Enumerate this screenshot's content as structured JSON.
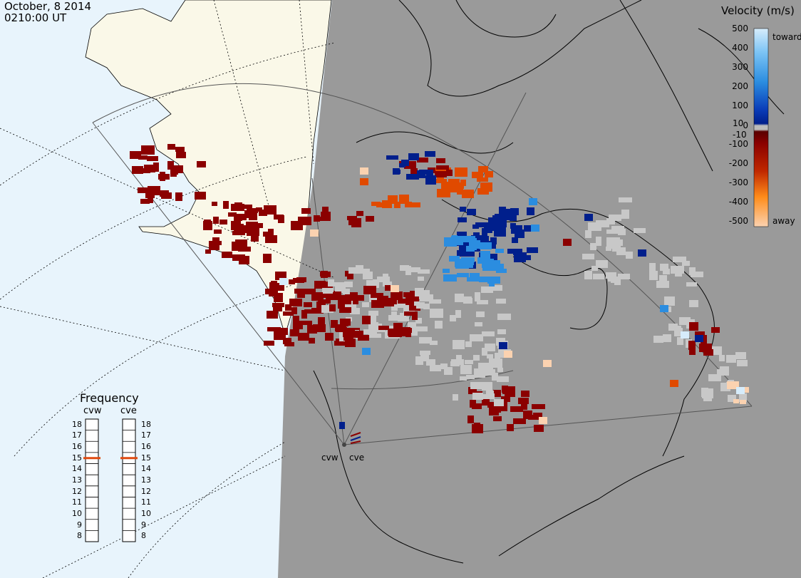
{
  "header": {
    "date": "October, 8 2014",
    "time": "0210:00 UT"
  },
  "colorbar": {
    "title": "Velocity (m/s)",
    "ticks": [
      "500",
      "400",
      "300",
      "200",
      "100",
      "10",
      "0",
      "-10",
      "-100",
      "-200",
      "-300",
      "-400",
      "-500"
    ],
    "toward_label": "toward",
    "away_label": "away",
    "colors": {
      "toward_high": "#d6ecfb",
      "toward_mid": "#2b8de0",
      "toward_low": "#001f8c",
      "away_low": "#8b0000",
      "away_mid": "#e04a00",
      "away_high": "#fbd2b0",
      "ground_scatter": "#c8c8c8"
    }
  },
  "frequency": {
    "title": "Frequency",
    "radars": [
      {
        "label": "cvw",
        "current_mhz": 15
      },
      {
        "label": "cve",
        "current_mhz": 15
      }
    ],
    "scale": [
      "18",
      "17",
      "16",
      "15",
      "14",
      "13",
      "12",
      "11",
      "10",
      "9",
      "8"
    ],
    "marker_color": "#e04a10"
  },
  "sites": {
    "cvw_label": "cvw",
    "cve_label": "cve"
  },
  "map": {
    "night_shade": "#9a9a9a",
    "land_day": "#faf8e8",
    "ocean_day": "#e8f4fc"
  }
}
